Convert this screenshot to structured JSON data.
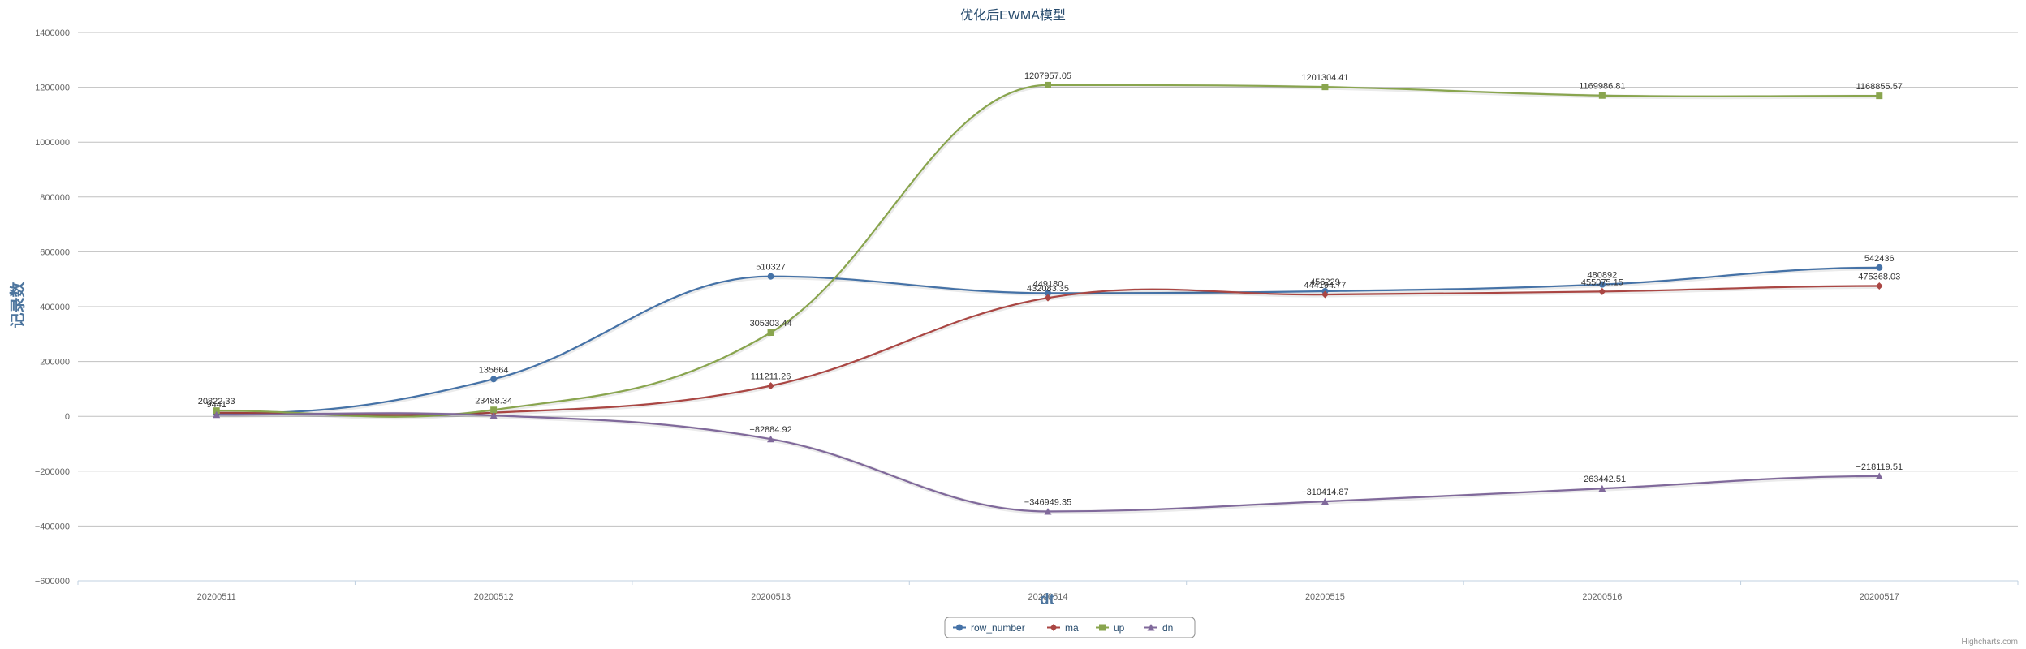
{
  "chart_data": {
    "type": "line",
    "title": "优化后EWMA模型",
    "xlabel": "dt",
    "ylabel": "记录数",
    "categories": [
      "20200511",
      "20200512",
      "20200513",
      "20200514",
      "20200515",
      "20200516",
      "20200517"
    ],
    "ylim": [
      -600000,
      1400000
    ],
    "yticks": [
      -600000,
      -400000,
      -200000,
      0,
      200000,
      400000,
      600000,
      800000,
      1000000,
      1200000,
      1400000
    ],
    "ytick_labels": [
      "−600000",
      "−400000",
      "−200000",
      "0",
      "200000",
      "400000",
      "600000",
      "800000",
      "1000000",
      "1200000",
      "1400000"
    ],
    "grid": true,
    "legend_position": "bottom-center",
    "series": [
      {
        "name": "row_number",
        "color": "#4572A7",
        "marker": "circle",
        "values": [
          9441,
          135664,
          510327,
          449180,
          456229,
          480892,
          542436
        ],
        "labels": [
          "9441",
          "135664",
          "510327",
          "449180",
          "456229",
          "480892",
          "542436"
        ]
      },
      {
        "name": "ma",
        "color": "#AA4643",
        "marker": "diamond",
        "values": [
          13000,
          13380.1,
          111211.26,
          432083.35,
          444194.77,
          455075.15,
          475368.03
        ],
        "labels": [
          "",
          "",
          "111211.26",
          "432083.35",
          "444194.77",
          "455075.15",
          "475368.03"
        ]
      },
      {
        "name": "up",
        "color": "#89A54E",
        "marker": "square",
        "values": [
          20822.33,
          23488.34,
          305303.44,
          1207957.05,
          1201304.41,
          1169986.81,
          1168855.57
        ],
        "labels": [
          "20822.33",
          "23488.34",
          "305303.44",
          "1207957.05",
          "1201304.41",
          "1169986.81",
          "1168855.57"
        ]
      },
      {
        "name": "dn",
        "color": "#80699B",
        "marker": "triangle",
        "values": [
          5800,
          3271.86,
          -82884.92,
          -346949.35,
          -310414.87,
          -263442.51,
          -218119.51
        ],
        "labels": [
          "",
          "",
          "−82884.92",
          "−346949.35",
          "−310414.87",
          "−263442.51",
          "−218119.51"
        ]
      }
    ]
  },
  "credits": "Highcharts.com"
}
